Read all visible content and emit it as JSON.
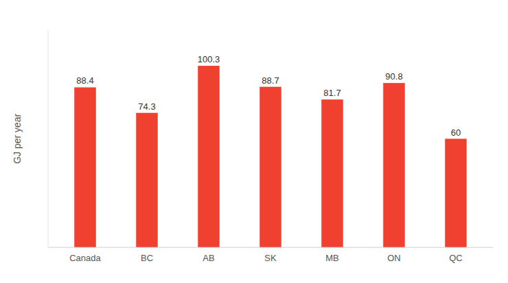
{
  "chart_data": {
    "type": "bar",
    "categories": [
      "Canada",
      "BC",
      "AB",
      "SK",
      "MB",
      "ON",
      "QC"
    ],
    "values": [
      88.4,
      74.3,
      100.3,
      88.7,
      81.7,
      90.8,
      60
    ],
    "color": "#f04030",
    "ylabel": "GJ per year",
    "ylim": [
      0,
      120
    ],
    "grid": false,
    "data_labels": true,
    "tick_labels": "x"
  }
}
